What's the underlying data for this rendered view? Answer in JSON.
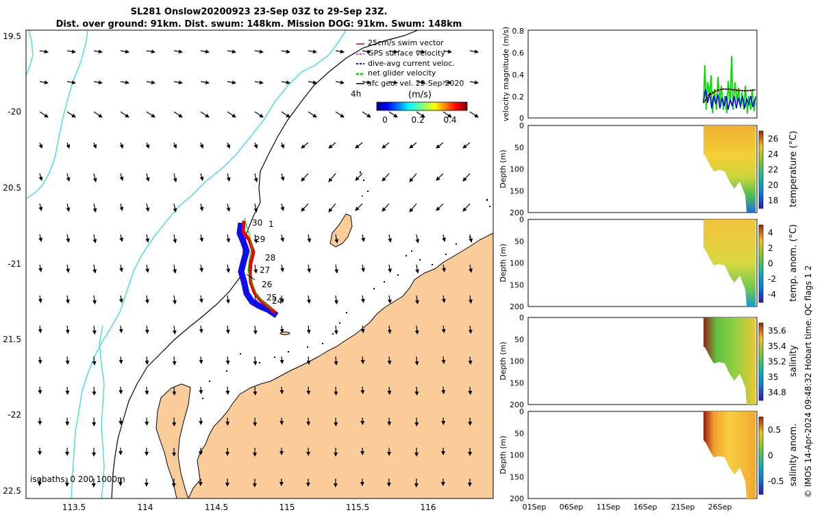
{
  "title": {
    "line1": "SL281 Onslow20200923 23-Sep 03Z to 29-Sep 23Z.",
    "line2": "Dist. over ground: 91km. Dist. swum: 148km. Mission DOG: 91km. Swum: 148km"
  },
  "map": {
    "lat_ticks": [
      "19.5",
      "-20",
      "20.5",
      "-21",
      "21.5",
      "-22",
      "22.5"
    ],
    "lon_ticks": [
      "113.5",
      "114",
      "114.5",
      "115",
      "115.5",
      "116"
    ],
    "legend": [
      {
        "label": "25cm/s swim vector",
        "color": "#cc0000"
      },
      {
        "label": "GPS surface velocity",
        "color": "#cc00cc"
      },
      {
        "label": "dive-avg current veloc.",
        "color": "#0000ee"
      },
      {
        "label": "net glider velocity",
        "color": "#00dd00"
      },
      {
        "label": "sfc geo. vel. 29-Sep-2020",
        "color": "#000000"
      }
    ],
    "legend_time": "4h",
    "colorbar_title": "(m/s)",
    "colorbar_ticks": [
      "0",
      "0.2",
      "0.4"
    ],
    "day_labels": [
      "30",
      "1",
      "29",
      "28",
      "27",
      "26",
      "25",
      "24"
    ],
    "isobaths_label": "isobaths: 0   200  1000m"
  },
  "panels": {
    "velocity": {
      "ylabel": "velocity magnitude (m/s)",
      "yticks": [
        "0.8",
        "0.6",
        "0.4",
        "0.2",
        "0"
      ]
    },
    "temperature": {
      "ylabel": "Depth (m)",
      "cblabel": "temperature (°C)",
      "yticks": [
        "0",
        "50",
        "100",
        "150",
        "200"
      ],
      "cbticks": [
        "26",
        "24",
        "22",
        "20",
        "18"
      ]
    },
    "temp_anom": {
      "ylabel": "Depth (m)",
      "cblabel": "temp. anom. (°C)",
      "yticks": [
        "0",
        "50",
        "100",
        "150",
        "200"
      ],
      "cbticks": [
        "4",
        "2",
        "0",
        "-2",
        "-4"
      ]
    },
    "salinity": {
      "ylabel": "Depth (m)",
      "cblabel": "salinity",
      "yticks": [
        "0",
        "50",
        "100",
        "150",
        "200"
      ],
      "cbticks": [
        "35.6",
        "35.4",
        "35.2",
        "35",
        "34.8"
      ]
    },
    "sal_anom": {
      "ylabel": "Depth (m)",
      "cblabel": "salinity anom.",
      "yticks": [
        "0",
        "50",
        "100",
        "150",
        "200"
      ],
      "cbticks": [
        "0.5",
        "0",
        "-0.5"
      ]
    },
    "xticks": [
      "01Sep",
      "06Sep",
      "11Sep",
      "16Sep",
      "21Sep",
      "26Sep"
    ]
  },
  "footer": "© IMOS 14-Apr-2024 09:48:32 Hobart time. QC flags 1  2"
}
